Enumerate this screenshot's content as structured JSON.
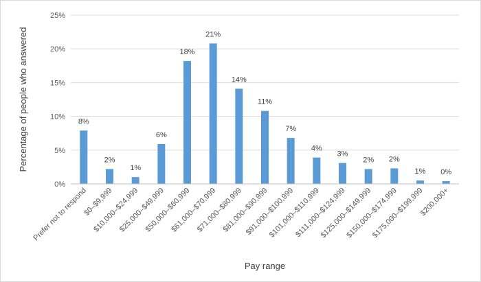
{
  "chart_data": {
    "type": "bar",
    "title": "",
    "xlabel": "Pay range",
    "ylabel": "Percentage of people who answered",
    "categories": [
      "Prefer not to respond",
      "$0–$9,999",
      "$10,000–$24,999",
      "$25,000–$49,999",
      "$50,000–$60,999",
      "$61,000–$70,999",
      "$71,000–$80,999",
      "$81,000–$90,999",
      "$91,000–$100,999",
      "$101,000–$110,999",
      "$111,000–$124,999",
      "$125,000–$149,999",
      "$150,000–$174,999",
      "$175,000–$199,999",
      "$200,000+"
    ],
    "values": [
      7.9,
      2.2,
      1.0,
      5.9,
      18.2,
      20.8,
      14.1,
      10.8,
      6.8,
      3.9,
      3.1,
      2.2,
      2.3,
      0.5,
      0.4
    ],
    "data_labels": [
      "8%",
      "2%",
      "1%",
      "6%",
      "18%",
      "21%",
      "14%",
      "11%",
      "7%",
      "4%",
      "3%",
      "2%",
      "2%",
      "1%",
      "0%"
    ],
    "yticks": [
      "0%",
      "5%",
      "10%",
      "15%",
      "20%",
      "25%"
    ],
    "ylim": [
      0,
      25
    ],
    "grid": true,
    "legend": "none",
    "bar_color": "#5b9bd5"
  }
}
